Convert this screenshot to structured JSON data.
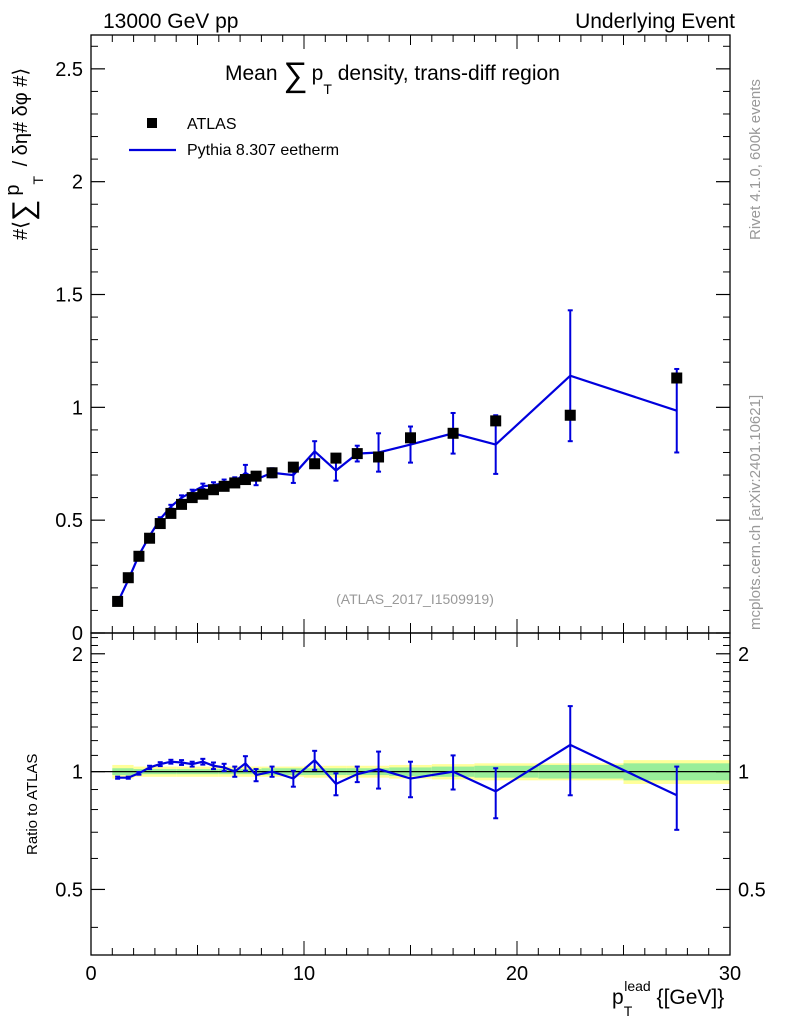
{
  "header": {
    "left_label": "13000 GeV pp",
    "right_label": "Underlying Event"
  },
  "side_text": {
    "rivet": "Rivet 4.1.0,  600k events",
    "mcplots": "mcplots.cern.ch [arXiv:2401.10621]"
  },
  "colors": {
    "data": "#000000",
    "mc": "#0000dd",
    "band_inner": "#99ee99",
    "band_outer": "#ffff99",
    "axis": "#000000",
    "watermark": "#999999"
  },
  "chart_data": [
    {
      "id": "main",
      "type": "line",
      "title_parts": [
        "Mean ",
        "∑",
        "p",
        "T",
        " density, trans-diff region"
      ],
      "ylabel_parts": [
        "#⟨",
        "∑",
        "p",
        "T",
        " / δη# δφ #⟩"
      ],
      "xlabel": "",
      "ylim": [
        0,
        2.65
      ],
      "xlim": [
        0,
        30
      ],
      "yticks": [
        0,
        0.5,
        1,
        1.5,
        2,
        2.5
      ],
      "ytick_labels": [
        "0",
        "0.5",
        "1",
        "1.5",
        "2",
        "2.5"
      ],
      "annotation": "(ATLAS_2017_I1509919)",
      "legend": [
        {
          "label": "ATLAS",
          "marker": "square"
        },
        {
          "label": "Pythia 8.307 eetherm",
          "marker": "line"
        }
      ],
      "series": [
        {
          "name": "ATLAS",
          "x": [
            1.25,
            1.75,
            2.25,
            2.75,
            3.25,
            3.75,
            4.25,
            4.75,
            5.25,
            5.75,
            6.25,
            6.75,
            7.25,
            7.75,
            8.5,
            9.5,
            10.5,
            11.5,
            12.5,
            13.5,
            15.0,
            17.0,
            19.0,
            22.5,
            27.5
          ],
          "y": [
            0.14,
            0.245,
            0.34,
            0.42,
            0.485,
            0.53,
            0.57,
            0.6,
            0.615,
            0.635,
            0.65,
            0.665,
            0.68,
            0.695,
            0.71,
            0.735,
            0.75,
            0.775,
            0.795,
            0.78,
            0.865,
            0.885,
            0.94,
            0.965,
            1.13
          ]
        },
        {
          "name": "Pythia 8.307 eetherm",
          "x": [
            1.25,
            1.75,
            2.25,
            2.75,
            3.25,
            3.75,
            4.25,
            4.75,
            5.25,
            5.75,
            6.25,
            6.75,
            7.25,
            7.75,
            8.5,
            9.5,
            10.5,
            11.5,
            12.5,
            13.5,
            15.0,
            17.0,
            19.0,
            22.5,
            27.5
          ],
          "y": [
            0.135,
            0.235,
            0.345,
            0.43,
            0.505,
            0.56,
            0.6,
            0.625,
            0.65,
            0.655,
            0.665,
            0.67,
            0.71,
            0.68,
            0.71,
            0.7,
            0.805,
            0.72,
            0.795,
            0.8,
            0.835,
            0.885,
            0.835,
            1.14,
            0.985
          ],
          "yerr": [
            0.005,
            0.005,
            0.006,
            0.007,
            0.008,
            0.008,
            0.01,
            0.01,
            0.012,
            0.013,
            0.015,
            0.02,
            0.035,
            0.025,
            0.02,
            0.035,
            0.045,
            0.045,
            0.035,
            0.085,
            0.08,
            0.09,
            0.13,
            0.29,
            0.185
          ]
        }
      ]
    },
    {
      "id": "ratio",
      "type": "line",
      "ylabel": "Ratio to ATLAS",
      "xlabel_parts": [
        "p",
        "T",
        "lead",
        " {[GeV]}"
      ],
      "ylim": [
        0.34,
        2.26
      ],
      "xlim": [
        0,
        30
      ],
      "yticks": [
        0.5,
        1,
        2
      ],
      "ytick_labels": [
        "0.5",
        "1",
        "2"
      ],
      "xticks": [
        0,
        10,
        20,
        30
      ],
      "xtick_labels": [
        "0",
        "10",
        "20",
        "30"
      ],
      "band": {
        "x_edges": [
          1.0,
          2.0,
          4.0,
          6.0,
          8.0,
          10.0,
          12.0,
          14.0,
          16.0,
          18.0,
          21.0,
          25.0,
          30.0
        ],
        "inner": [
          0.02,
          0.015,
          0.015,
          0.015,
          0.02,
          0.02,
          0.02,
          0.025,
          0.03,
          0.035,
          0.04,
          0.05
        ],
        "outer": [
          0.04,
          0.03,
          0.03,
          0.03,
          0.03,
          0.035,
          0.035,
          0.04,
          0.045,
          0.05,
          0.05,
          0.07
        ]
      },
      "series": [
        {
          "name": "Pythia 8.307 eetherm / ATLAS",
          "x": [
            1.25,
            1.75,
            2.25,
            2.75,
            3.25,
            3.75,
            4.25,
            4.75,
            5.25,
            5.75,
            6.25,
            6.75,
            7.25,
            7.75,
            8.5,
            9.5,
            10.5,
            11.5,
            12.5,
            13.5,
            15.0,
            17.0,
            19.0,
            22.5,
            27.5
          ],
          "y": [
            0.965,
            0.965,
            0.99,
            1.025,
            1.045,
            1.06,
            1.055,
            1.045,
            1.06,
            1.035,
            1.025,
            1.0,
            1.05,
            0.98,
            1.0,
            0.96,
            1.07,
            0.93,
            0.985,
            1.015,
            0.96,
            1.0,
            0.89,
            1.17,
            0.87
          ],
          "yerr": [
            0.006,
            0.006,
            0.008,
            0.01,
            0.012,
            0.012,
            0.015,
            0.015,
            0.018,
            0.02,
            0.022,
            0.03,
            0.045,
            0.035,
            0.03,
            0.045,
            0.06,
            0.06,
            0.045,
            0.11,
            0.1,
            0.1,
            0.13,
            0.3,
            0.16
          ]
        }
      ]
    }
  ]
}
